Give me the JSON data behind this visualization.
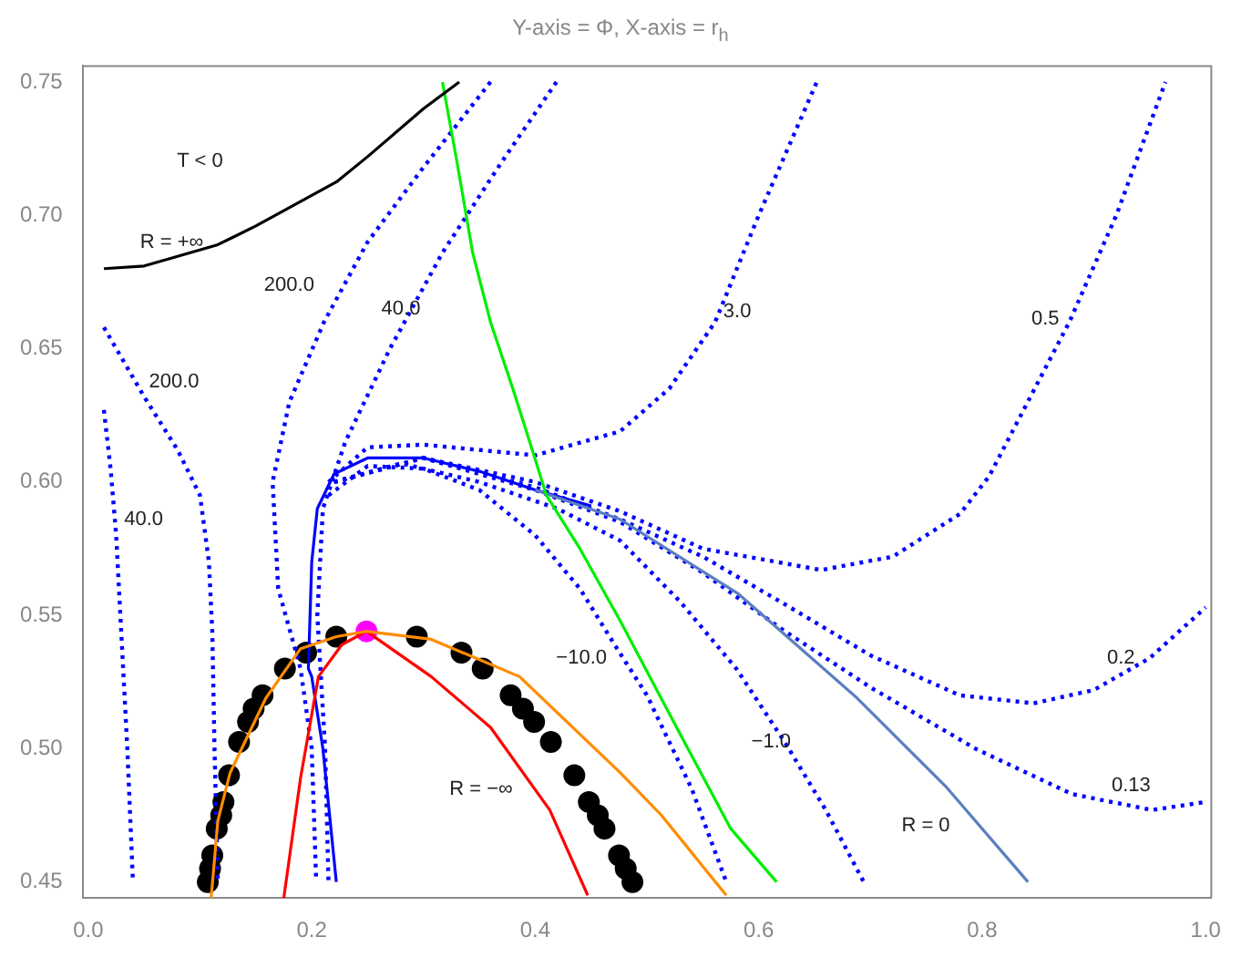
{
  "chart_data": {
    "type": "line",
    "title": "Y-axis = Φ, X-axis = r$_{h}$",
    "xlim": [
      -0.005,
      1.005
    ],
    "ylim": [
      0.444,
      0.756
    ],
    "xticks": [
      {
        "value": 0,
        "label": "0.0"
      },
      {
        "value": 0.2,
        "label": "0.2"
      },
      {
        "value": 0.4,
        "label": "0.4"
      },
      {
        "value": 0.6,
        "label": "0.6"
      },
      {
        "value": 0.8,
        "label": "0.8"
      },
      {
        "value": 1,
        "label": "1.0"
      }
    ],
    "yticks": [
      0.45,
      {
        "value": 0.5,
        "label": "0.50"
      },
      0.55,
      {
        "value": 0.6,
        "label": "0.60"
      },
      0.65,
      {
        "value": 0.7,
        "label": "0.70"
      },
      0.75
    ],
    "grid": false,
    "legend": false,
    "series": [
      {
        "color": "#000000",
        "line_style": "solid",
        "marker": "none",
        "x": [
          0.014,
          0.05,
          0.075,
          0.116,
          0.15,
          0.222,
          0.25,
          0.3,
          0.332
        ],
        "values": [
          0.68,
          0.681,
          0.684,
          0.689,
          0.696,
          0.7125,
          0.722,
          0.74,
          0.75
        ]
      },
      {
        "color": "#00ee00",
        "line_style": "solid",
        "marker": "none",
        "x": [
          0.317,
          0.33,
          0.344,
          0.36,
          0.38,
          0.397,
          0.41,
          0.44,
          0.476,
          0.529,
          0.575,
          0.616
        ],
        "values": [
          0.75,
          0.72,
          0.686,
          0.66,
          0.635,
          0.6125,
          0.595,
          0.575,
          0.548,
          0.506,
          0.47,
          0.45
        ]
      },
      {
        "color": "#ff8c00",
        "line_style": "solid",
        "marker": "none",
        "x": [
          0.11,
          0.116,
          0.127,
          0.159,
          0.19,
          0.222,
          0.249,
          0.307,
          0.386,
          0.476,
          0.513,
          0.571
        ],
        "values": [
          0.444,
          0.473,
          0.491,
          0.519,
          0.5375,
          0.542,
          0.544,
          0.541,
          0.527,
          0.491,
          0.475,
          0.445
        ]
      },
      {
        "color": "#ff0000",
        "line_style": "solid",
        "marker": "none",
        "x": [
          0.175,
          0.19,
          0.206,
          0.227,
          0.249,
          0.307,
          0.36,
          0.413,
          0.447
        ],
        "values": [
          0.444,
          0.489,
          0.527,
          0.539,
          0.544,
          0.527,
          0.508,
          0.477,
          0.445
        ]
      },
      {
        "color": "#5b7fc0",
        "line_style": "solid",
        "marker": "none",
        "x": [
          0.4,
          0.476,
          0.582,
          0.688,
          0.767,
          0.841
        ],
        "values": [
          0.597,
          0.586,
          0.558,
          0.519,
          0.486,
          0.45
        ]
      },
      {
        "color": "#0000ff",
        "line_style": "solid",
        "marker": "none",
        "x": [
          0.222,
          0.21,
          0.2,
          0.197,
          0.2,
          0.205,
          0.22,
          0.25,
          0.3,
          0.35,
          0.4,
          0.45
        ],
        "values": [
          0.45,
          0.5,
          0.527,
          0.53,
          0.57,
          0.59,
          0.603,
          0.609,
          0.609,
          0.604,
          0.597,
          0.591
        ]
      },
      {
        "color": "#0000ff",
        "line_style": "dotted",
        "marker": "none",
        "x": [
          0.014,
          0.02,
          0.025,
          0.03,
          0.035,
          0.04
        ],
        "values": [
          0.627,
          0.605,
          0.58,
          0.54,
          0.5,
          0.45
        ]
      },
      {
        "color": "#0000ff",
        "line_style": "dotted",
        "marker": "none",
        "x": [
          0.014,
          0.05,
          0.08,
          0.1,
          0.108,
          0.111,
          0.113,
          0.116
        ],
        "values": [
          0.658,
          0.632,
          0.612,
          0.595,
          0.57,
          0.544,
          0.5,
          0.45
        ]
      },
      {
        "color": "#0000ff",
        "line_style": "dotted",
        "marker": "none",
        "x": [
          0.36,
          0.3,
          0.25,
          0.211,
          0.18,
          0.165,
          0.17,
          0.19,
          0.2,
          0.204
        ],
        "values": [
          0.75,
          0.718,
          0.69,
          0.66,
          0.63,
          0.6,
          0.56,
          0.53,
          0.5,
          0.45
        ]
      },
      {
        "color": "#0000ff",
        "line_style": "dotted",
        "marker": "none",
        "x": [
          0.419,
          0.37,
          0.317,
          0.27,
          0.23,
          0.21,
          0.205,
          0.212,
          0.215
        ],
        "values": [
          0.75,
          0.72,
          0.686,
          0.65,
          0.615,
          0.59,
          0.55,
          0.5,
          0.45
        ]
      },
      {
        "color": "#0000ff",
        "line_style": "dotted",
        "marker": "none",
        "x": [
          0.215,
          0.25,
          0.3,
          0.4,
          0.476,
          0.52,
          0.561,
          0.6,
          0.652
        ],
        "values": [
          0.6,
          0.613,
          0.614,
          0.61,
          0.619,
          0.635,
          0.66,
          0.7,
          0.75
        ]
      },
      {
        "color": "#0000ff",
        "line_style": "dotted",
        "marker": "none",
        "x": [
          0.22,
          0.3,
          0.4,
          0.476,
          0.55,
          0.656,
          0.72,
          0.78,
          0.806,
          0.878,
          0.92,
          0.964
        ],
        "values": [
          0.6,
          0.609,
          0.6,
          0.589,
          0.575,
          0.567,
          0.572,
          0.588,
          0.602,
          0.66,
          0.7,
          0.75
        ]
      },
      {
        "color": "#0000ff",
        "line_style": "dotted",
        "marker": "none",
        "x": [
          0.22,
          0.3,
          0.4,
          0.476,
          0.55,
          0.62,
          0.7,
          0.78,
          0.846,
          0.9,
          0.95,
          1.0
        ],
        "values": [
          0.6,
          0.609,
          0.598,
          0.586,
          0.572,
          0.555,
          0.535,
          0.52,
          0.517,
          0.522,
          0.534,
          0.553
        ]
      },
      {
        "color": "#0000ff",
        "line_style": "dotted",
        "marker": "none",
        "x": [
          0.22,
          0.3,
          0.4,
          0.476,
          0.55,
          0.62,
          0.7,
          0.794,
          0.88,
          0.952,
          1.0
        ],
        "values": [
          0.6,
          0.609,
          0.597,
          0.585,
          0.566,
          0.545,
          0.523,
          0.5,
          0.483,
          0.477,
          0.48
        ]
      },
      {
        "color": "#0000ff",
        "line_style": "dotted",
        "marker": "none",
        "x": [
          0.22,
          0.28,
          0.35,
          0.42,
          0.476,
          0.53,
          0.58,
          0.624,
          0.66,
          0.694
        ],
        "values": [
          0.6,
          0.607,
          0.6,
          0.59,
          0.578,
          0.555,
          0.53,
          0.502,
          0.477,
          0.45
        ]
      },
      {
        "color": "#0000ff",
        "line_style": "dotted",
        "marker": "none",
        "x": [
          0.215,
          0.25,
          0.3,
          0.35,
          0.4,
          0.44,
          0.471,
          0.5,
          0.54,
          0.571
        ],
        "values": [
          0.595,
          0.606,
          0.605,
          0.597,
          0.58,
          0.56,
          0.539,
          0.52,
          0.485,
          0.45
        ]
      },
      {
        "type": "scatter",
        "color": "#000000",
        "marker": "circle",
        "x": [
          0.107,
          0.109,
          0.111,
          0.115,
          0.119,
          0.121,
          0.126,
          0.135,
          0.143,
          0.148,
          0.156,
          0.176,
          0.195,
          0.222,
          0.294,
          0.334,
          0.353,
          0.378,
          0.389,
          0.399,
          0.414,
          0.435,
          0.448,
          0.456,
          0.462,
          0.475,
          0.481,
          0.487
        ],
        "values": [
          0.45,
          0.455,
          0.46,
          0.47,
          0.475,
          0.48,
          0.49,
          0.5025,
          0.51,
          0.515,
          0.52,
          0.53,
          0.536,
          0.542,
          0.542,
          0.536,
          0.53,
          0.52,
          0.515,
          0.51,
          0.5025,
          0.49,
          0.48,
          0.475,
          0.47,
          0.46,
          0.455,
          0.45
        ]
      },
      {
        "type": "scatter",
        "color": "#ff00ff",
        "marker": "circle",
        "x": [
          0.249
        ],
        "values": [
          0.544
        ]
      }
    ],
    "annotations": [
      "T < 0",
      "R = +∞",
      "200.0",
      "40.0",
      "200.0",
      "40.0",
      "3.0",
      "0.5",
      "−10.0",
      "−1.0",
      "0.2",
      "0.13",
      "R = 0",
      "R = −∞"
    ]
  }
}
